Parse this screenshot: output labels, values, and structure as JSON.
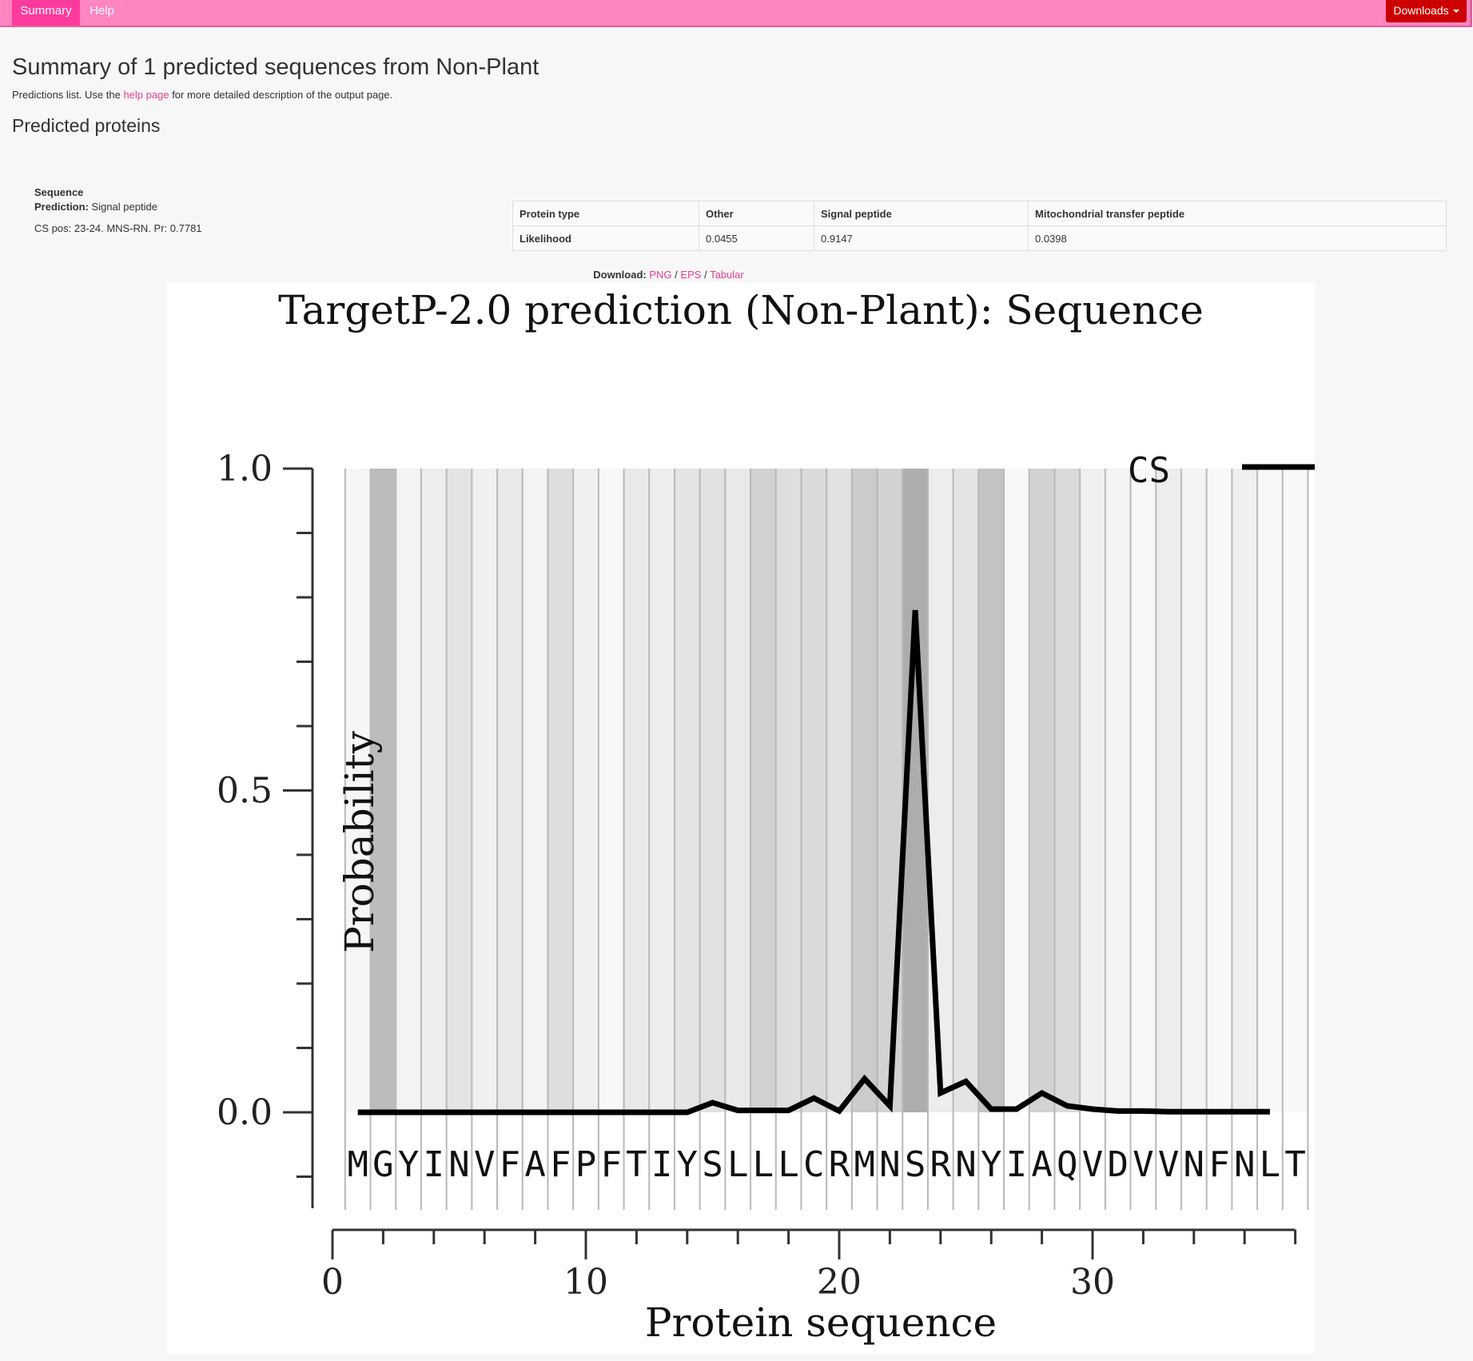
{
  "nav": {
    "summary": "Summary",
    "help": "Help",
    "downloads": "Downloads"
  },
  "header": {
    "title": "Summary of 1 predicted sequences from Non-Plant",
    "intro_prefix": "Predictions list. Use the ",
    "intro_link": "help page",
    "intro_suffix": " for more detailed description of the output page.",
    "section": "Predicted proteins"
  },
  "result": {
    "name": "Sequence",
    "prediction_label": "Prediction:",
    "prediction_value": "Signal peptide",
    "cs_text": "CS pos: 23-24. MNS-RN. Pr: 0.7781",
    "table": {
      "row1": [
        "Protein type",
        "Other",
        "Signal peptide",
        "Mitochondrial transfer peptide"
      ],
      "row2": [
        "Likelihood",
        "0.0455",
        "0.9147",
        "0.0398"
      ]
    }
  },
  "download": {
    "label": "Download:",
    "png": "PNG",
    "eps": "EPS",
    "tabular": "Tabular",
    "sep": "/"
  },
  "chart_data": {
    "type": "line",
    "title": "TargetP-2.0 prediction (Non-Plant):  Sequence",
    "xlabel": "Protein sequence",
    "ylabel": "Probability",
    "xlim": [
      0,
      38
    ],
    "ylim": [
      -0.15,
      1.0
    ],
    "x_ticks": [
      0,
      10,
      20,
      30
    ],
    "y_ticks": [
      "0.0",
      "0.5",
      "1.0"
    ],
    "sequence": "MGYINVFAFPFTIYSLLLCRMNSRNYIAQVDVVNFNLT",
    "series": [
      {
        "name": "CS",
        "x": [
          1,
          2,
          3,
          4,
          5,
          6,
          7,
          8,
          9,
          10,
          11,
          12,
          13,
          14,
          15,
          16,
          17,
          18,
          19,
          20,
          21,
          22,
          23,
          24,
          25,
          26,
          27,
          28,
          29,
          30,
          31,
          32,
          33,
          34,
          35,
          36,
          37
        ],
        "values": [
          0,
          0,
          0,
          0,
          0,
          0,
          0,
          0,
          0,
          0,
          0,
          0,
          0,
          0,
          0.015,
          0.003,
          0.003,
          0.003,
          0.022,
          0.002,
          0.052,
          0.01,
          0.78,
          0.03,
          0.048,
          0.005,
          0.005,
          0.03,
          0.01,
          0.005,
          0.002,
          0.002,
          0.001,
          0.001,
          0.001,
          0.001,
          0.001
        ]
      }
    ],
    "background_shading": [
      0.06,
      0.45,
      0.08,
      0.12,
      0.18,
      0.1,
      0.15,
      0.08,
      0.22,
      0.1,
      0.05,
      0.15,
      0.12,
      0.18,
      0.2,
      0.15,
      0.3,
      0.22,
      0.25,
      0.2,
      0.35,
      0.3,
      0.55,
      0.12,
      0.18,
      0.4,
      0.05,
      0.3,
      0.25,
      0.1,
      0.08,
      0.05,
      0.12,
      0.08,
      0.05,
      0.1,
      0.05,
      0.05
    ],
    "legend": "top-right",
    "grid": true
  }
}
